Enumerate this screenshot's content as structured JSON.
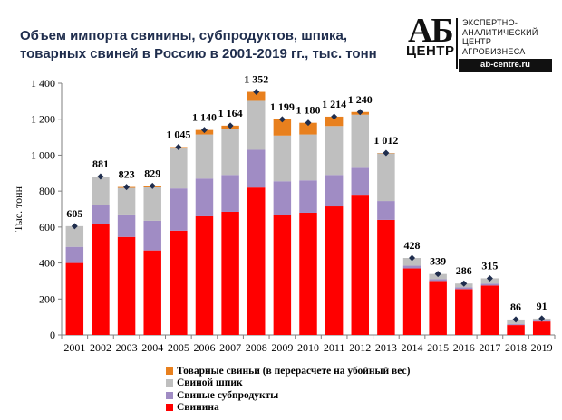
{
  "title": "Объем импорта свинины, субпродуктов, шпика, товарных свиней в Россию в 2001-2019 гг., тыс. тонн",
  "logo": {
    "ab": "АБ",
    "center": "ЦЕНТР",
    "line1": "ЭКСПЕРТНО-",
    "line2": "АНАЛИТИЧЕСКИЙ",
    "line3": "ЦЕНТР",
    "line4": "АГРОБИЗНЕСА",
    "url": "ab-centre.ru"
  },
  "chart_data": {
    "type": "bar",
    "stacked": true,
    "title": "Объем импорта свинины, субпродуктов, шпика, товарных свиней в Россию в 2001-2019 гг., тыс. тонн",
    "xlabel": "",
    "ylabel": "Тыс. тонн",
    "ylim": [
      0,
      1400
    ],
    "yticks": [
      0,
      200,
      400,
      600,
      800,
      1000,
      1200,
      1400
    ],
    "ytick_labels": [
      "0",
      "200",
      "400",
      "600",
      "800",
      "1 000",
      "1 200",
      "1 400"
    ],
    "grid": false,
    "legend_position": "bottom",
    "categories": [
      "2001",
      "2002",
      "2003",
      "2004",
      "2005",
      "2006",
      "2007",
      "2008",
      "2009",
      "2010",
      "2011",
      "2012",
      "2013",
      "2014",
      "2015",
      "2016",
      "2017",
      "2018",
      "2019"
    ],
    "series": [
      {
        "name": "Свинина",
        "color": "#ff0000",
        "values": [
          400,
          615,
          545,
          470,
          580,
          660,
          685,
          820,
          665,
          680,
          715,
          780,
          640,
          370,
          300,
          255,
          275,
          55,
          75
        ]
      },
      {
        "name": "Свиные субпродукты",
        "color": "#a08cc4",
        "values": [
          90,
          110,
          125,
          165,
          235,
          210,
          205,
          210,
          190,
          180,
          175,
          150,
          105,
          15,
          10,
          10,
          10,
          5,
          5
        ]
      },
      {
        "name": "Свиной шпик",
        "color": "#bfbfbf",
        "values": [
          115,
          156,
          148,
          186,
          222,
          245,
          254,
          272,
          254,
          255,
          272,
          295,
          265,
          43,
          29,
          21,
          30,
          26,
          11
        ]
      },
      {
        "name": "Товарные свиньи (в перерасчете на убойный вес)",
        "color": "#e8801e",
        "values": [
          0,
          0,
          5,
          8,
          8,
          25,
          20,
          50,
          90,
          65,
          52,
          15,
          2,
          0,
          0,
          0,
          0,
          0,
          0
        ]
      }
    ],
    "totals": [
      605,
      881,
      823,
      829,
      1045,
      1140,
      1164,
      1352,
      1199,
      1180,
      1214,
      1240,
      1012,
      428,
      339,
      286,
      315,
      86,
      91
    ],
    "total_labels": [
      "605",
      "881",
      "823",
      "829",
      "1 045",
      "1 140",
      "1 164",
      "1 352",
      "1 199",
      "1 180",
      "1 214",
      "1 240",
      "1 012",
      "428",
      "339",
      "286",
      "315",
      "86",
      "91"
    ],
    "total_marker": "diamond",
    "legend_order": [
      3,
      2,
      1,
      0
    ]
  }
}
